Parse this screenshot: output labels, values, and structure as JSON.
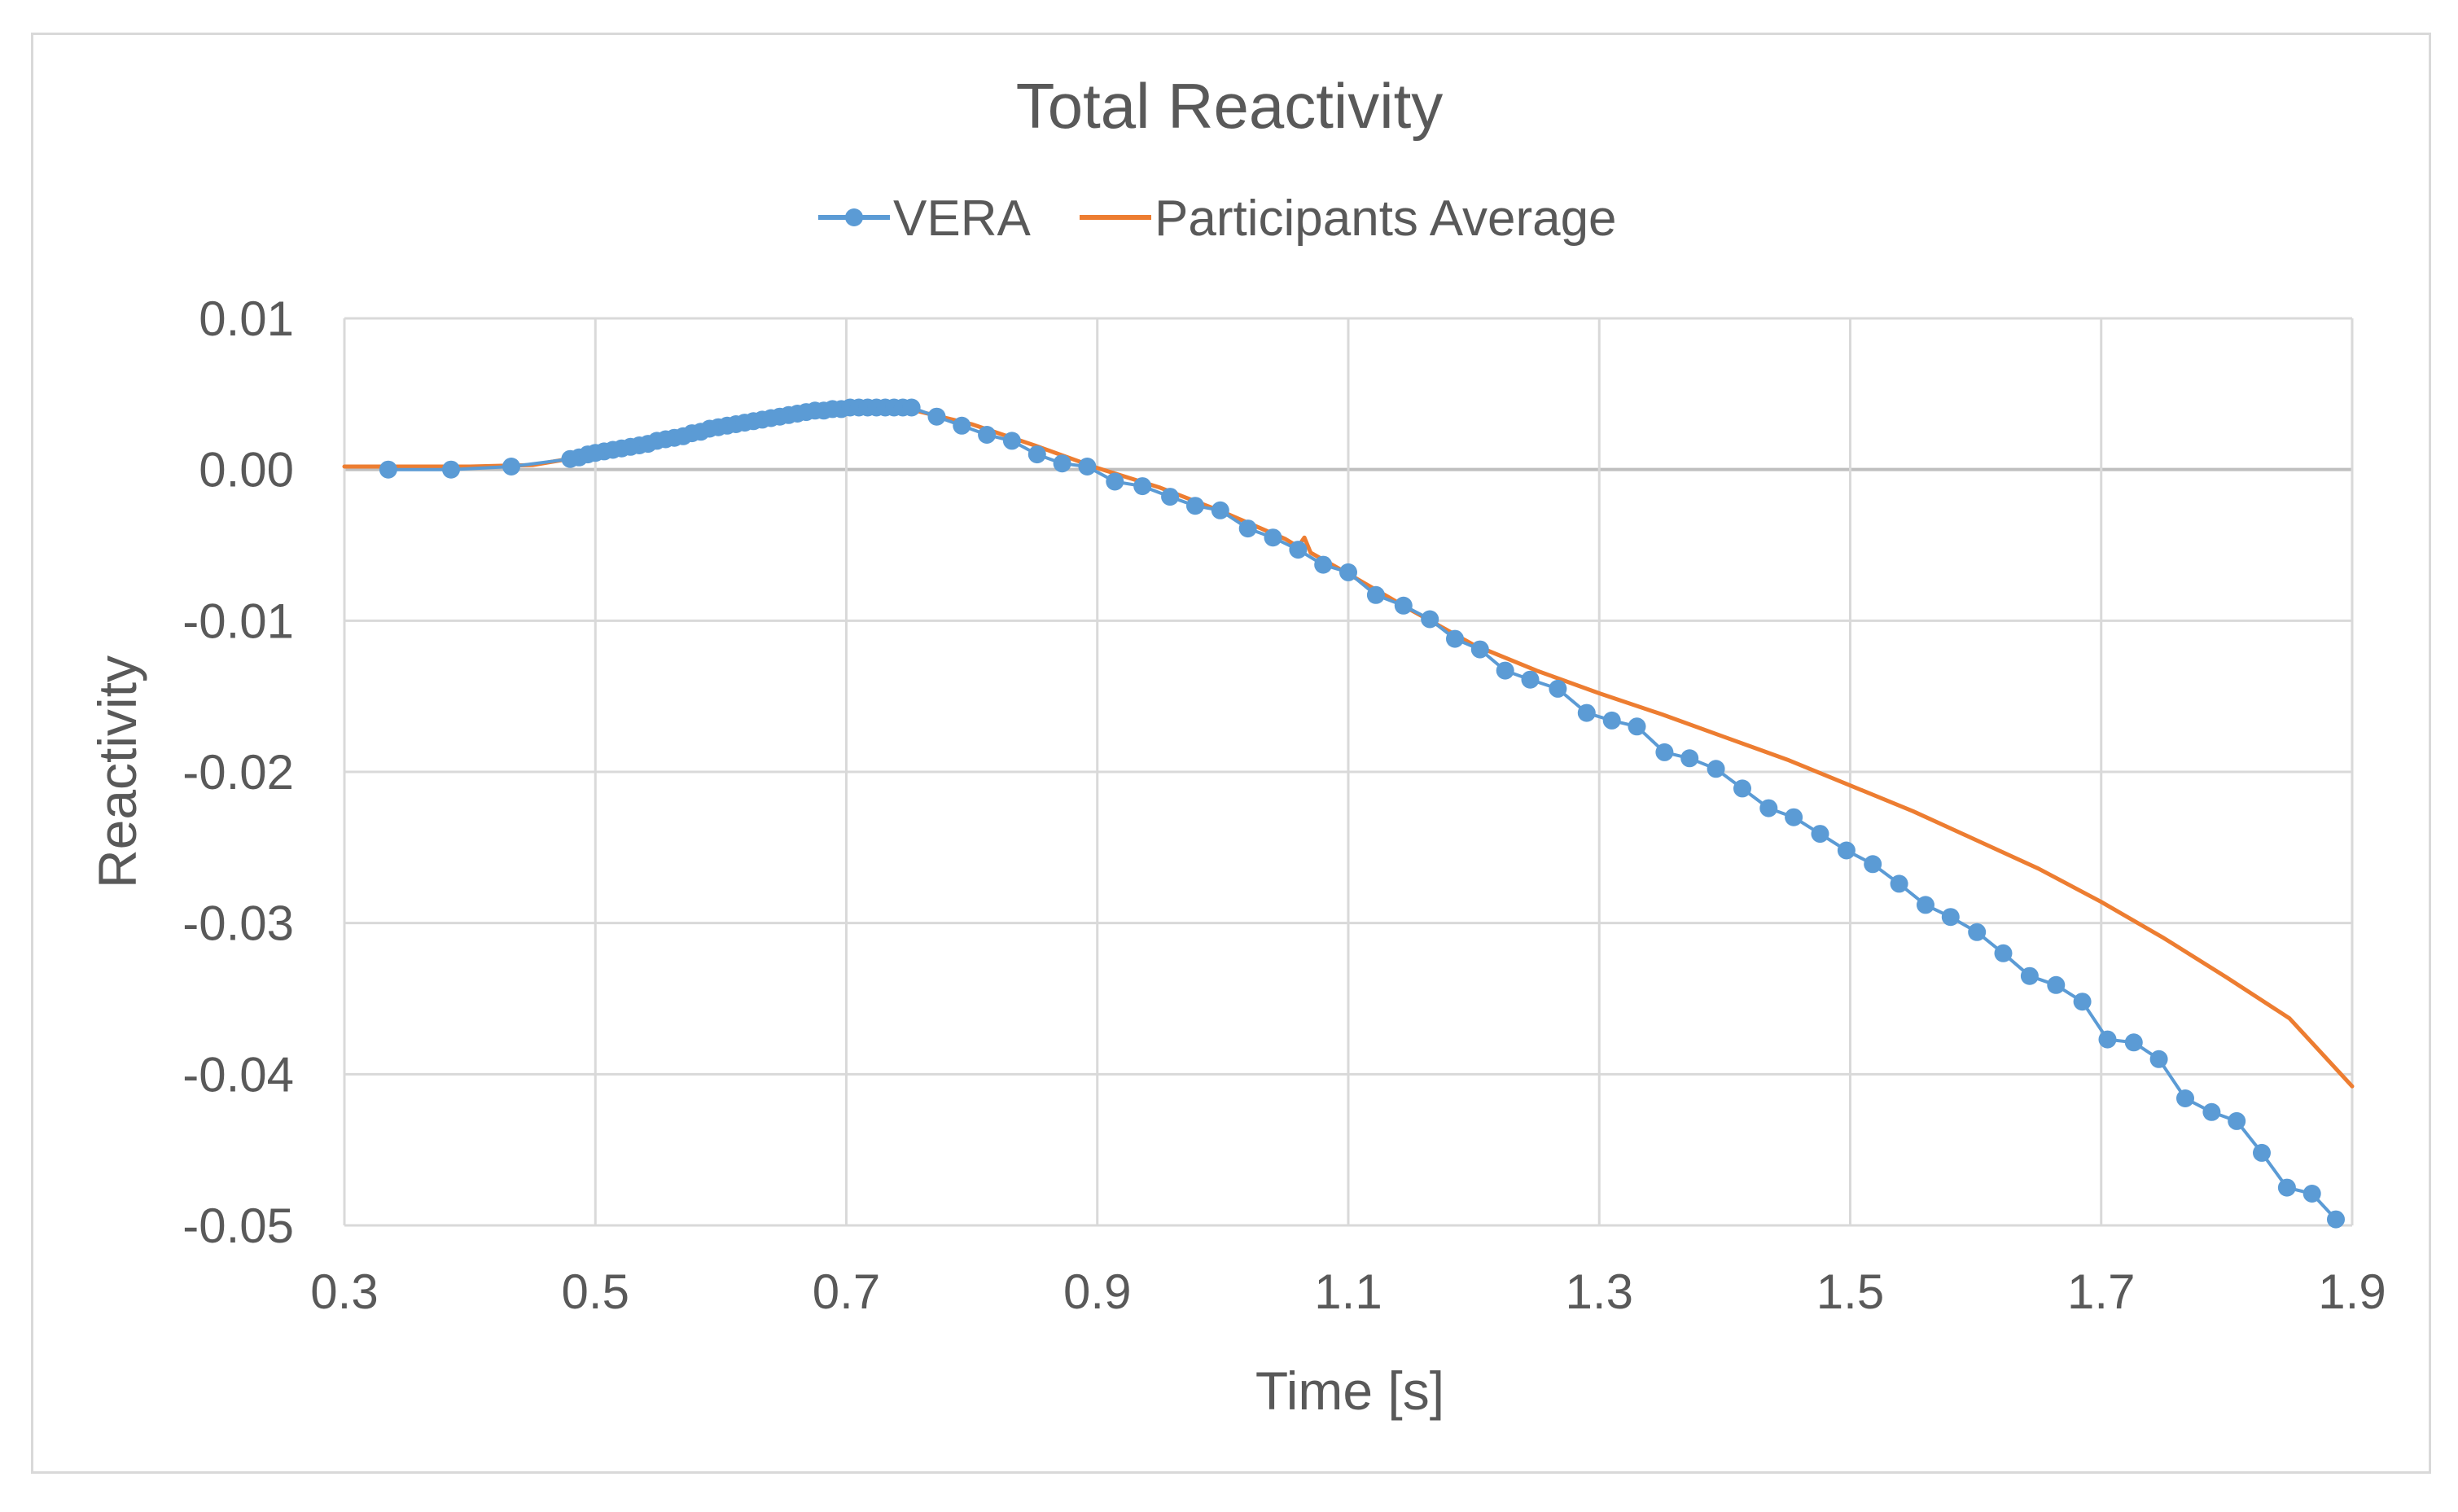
{
  "chart_data": {
    "type": "line",
    "title": "Total Reactivity",
    "xlabel": "Time [s]",
    "ylabel": "Reactivity",
    "xlim": [
      0.3,
      1.9
    ],
    "ylim": [
      -0.05,
      0.01
    ],
    "xticks": [
      0.3,
      0.5,
      0.7,
      0.9,
      1.1,
      1.3,
      1.5,
      1.7,
      1.9
    ],
    "xtick_labels": [
      "0.3",
      "0.5",
      "0.7",
      "0.9",
      "1.1",
      "1.3",
      "1.5",
      "1.7",
      "1.9"
    ],
    "yticks": [
      0.01,
      0.0,
      -0.01,
      -0.02,
      -0.03,
      -0.04,
      -0.05
    ],
    "ytick_labels": [
      "0.01",
      "0.00",
      "-0.01",
      "-0.02",
      "-0.03",
      "-0.04",
      "-0.05"
    ],
    "grid": true,
    "legend_position": "top-center",
    "series": [
      {
        "name": "VERA",
        "color": "#5b9bd5",
        "marker": "circle",
        "x": [
          0.335,
          0.385,
          0.433,
          0.48,
          0.487,
          0.494,
          0.5,
          0.507,
          0.514,
          0.521,
          0.528,
          0.535,
          0.542,
          0.549,
          0.556,
          0.563,
          0.57,
          0.577,
          0.584,
          0.591,
          0.598,
          0.605,
          0.612,
          0.619,
          0.626,
          0.633,
          0.64,
          0.647,
          0.654,
          0.661,
          0.668,
          0.675,
          0.682,
          0.689,
          0.696,
          0.703,
          0.71,
          0.717,
          0.724,
          0.731,
          0.738,
          0.745,
          0.752,
          0.772,
          0.792,
          0.812,
          0.832,
          0.852,
          0.872,
          0.892,
          0.914,
          0.936,
          0.958,
          0.978,
          0.998,
          1.02,
          1.04,
          1.06,
          1.08,
          1.1,
          1.122,
          1.144,
          1.165,
          1.185,
          1.205,
          1.225,
          1.245,
          1.267,
          1.29,
          1.31,
          1.33,
          1.352,
          1.372,
          1.393,
          1.414,
          1.435,
          1.455,
          1.476,
          1.497,
          1.518,
          1.539,
          1.56,
          1.58,
          1.601,
          1.622,
          1.643,
          1.664,
          1.685,
          1.705,
          1.726,
          1.746,
          1.767,
          1.788,
          1.808,
          1.828,
          1.848,
          1.868,
          1.887
        ],
        "y": [
          0.0,
          0.0,
          0.0002,
          0.0007,
          0.0008,
          0.001,
          0.0011,
          0.0012,
          0.0013,
          0.0014,
          0.0015,
          0.0016,
          0.0017,
          0.0019,
          0.002,
          0.0021,
          0.0022,
          0.0024,
          0.0025,
          0.0027,
          0.0028,
          0.0029,
          0.003,
          0.0031,
          0.0032,
          0.0033,
          0.0034,
          0.0035,
          0.0036,
          0.0037,
          0.0038,
          0.0039,
          0.0039,
          0.004,
          0.004,
          0.0041,
          0.0041,
          0.0041,
          0.0041,
          0.0041,
          0.0041,
          0.0041,
          0.0041,
          0.0035,
          0.0029,
          0.0023,
          0.0019,
          0.001,
          0.0004,
          0.0002,
          -0.0008,
          -0.0011,
          -0.0018,
          -0.0024,
          -0.0027,
          -0.0039,
          -0.0045,
          -0.0053,
          -0.0063,
          -0.0068,
          -0.0083,
          -0.009,
          -0.0099,
          -0.0112,
          -0.0119,
          -0.0133,
          -0.0139,
          -0.0145,
          -0.0161,
          -0.0166,
          -0.017,
          -0.0187,
          -0.0191,
          -0.0198,
          -0.0211,
          -0.0224,
          -0.023,
          -0.0241,
          -0.0252,
          -0.0261,
          -0.0274,
          -0.0288,
          -0.0296,
          -0.0306,
          -0.032,
          -0.0335,
          -0.0341,
          -0.0352,
          -0.0377,
          -0.0379,
          -0.039,
          -0.0416,
          -0.0425,
          -0.0431,
          -0.0452,
          -0.0475,
          -0.0479,
          -0.0496
        ]
      },
      {
        "name": "Participants Average",
        "color": "#ed7d31",
        "marker": "none",
        "x": [
          0.3,
          0.35,
          0.4,
          0.45,
          0.5,
          0.55,
          0.6,
          0.65,
          0.7,
          0.75,
          0.8,
          0.85,
          0.9,
          0.95,
          1.0,
          1.05,
          1.06,
          1.065,
          1.07,
          1.1,
          1.15,
          1.2,
          1.25,
          1.3,
          1.35,
          1.4,
          1.45,
          1.5,
          1.55,
          1.6,
          1.65,
          1.7,
          1.75,
          1.8,
          1.85,
          1.9
        ],
        "y": [
          0.0002,
          0.0002,
          0.0002,
          0.0003,
          0.001,
          0.0018,
          0.0028,
          0.0035,
          0.0041,
          0.004,
          0.003,
          0.0016,
          0.0001,
          -0.0012,
          -0.0028,
          -0.0046,
          -0.0051,
          -0.0045,
          -0.0055,
          -0.0069,
          -0.0093,
          -0.0116,
          -0.0133,
          -0.0148,
          -0.0162,
          -0.0177,
          -0.0192,
          -0.0209,
          -0.0226,
          -0.0245,
          -0.0264,
          -0.0286,
          -0.031,
          -0.0336,
          -0.0363,
          -0.0408
        ]
      }
    ]
  }
}
